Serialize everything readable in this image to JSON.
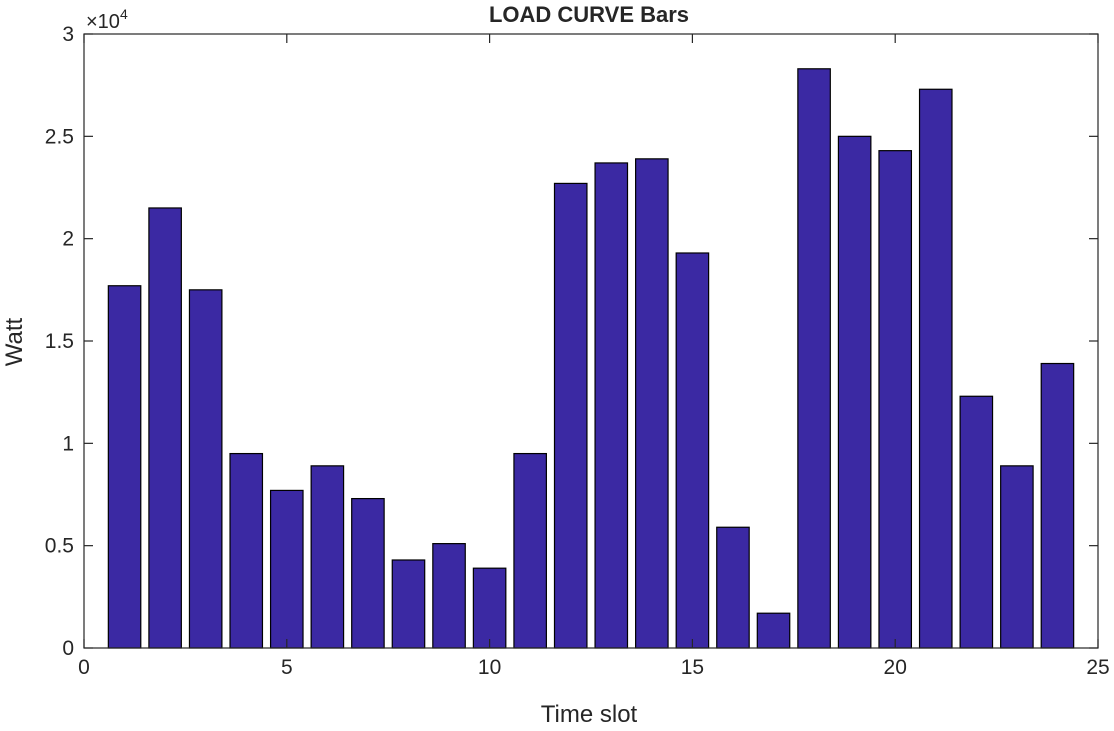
{
  "chart_data": {
    "type": "bar",
    "title": "LOAD CURVE Bars",
    "xlabel": "Time slot",
    "ylabel": "Watt",
    "y_exponent_label": "×10",
    "y_exponent_power": "4",
    "xlim": [
      0,
      25
    ],
    "ylim": [
      0,
      3
    ],
    "y_scale_note": "values in units of 10^4 Watt",
    "xticks": [
      0,
      5,
      10,
      15,
      20,
      25
    ],
    "xtick_labels": [
      "0",
      "5",
      "10",
      "15",
      "20",
      "25"
    ],
    "yticks": [
      0,
      0.5,
      1,
      1.5,
      2,
      2.5,
      3
    ],
    "ytick_labels": [
      "0",
      "0.5",
      "1",
      "1.5",
      "2",
      "2.5",
      "3"
    ],
    "categories": [
      1,
      2,
      3,
      4,
      5,
      6,
      7,
      8,
      9,
      10,
      11,
      12,
      13,
      14,
      15,
      16,
      17,
      18,
      19,
      20,
      21,
      22,
      23,
      24
    ],
    "values": [
      1.77,
      2.15,
      1.75,
      0.95,
      0.77,
      0.89,
      0.73,
      0.43,
      0.51,
      0.39,
      0.95,
      2.27,
      2.37,
      2.39,
      1.93,
      0.59,
      0.17,
      2.83,
      2.5,
      2.43,
      2.73,
      1.23,
      0.89,
      1.39
    ],
    "bar_color": "#3b29a3",
    "grid": false,
    "legend": "none"
  }
}
